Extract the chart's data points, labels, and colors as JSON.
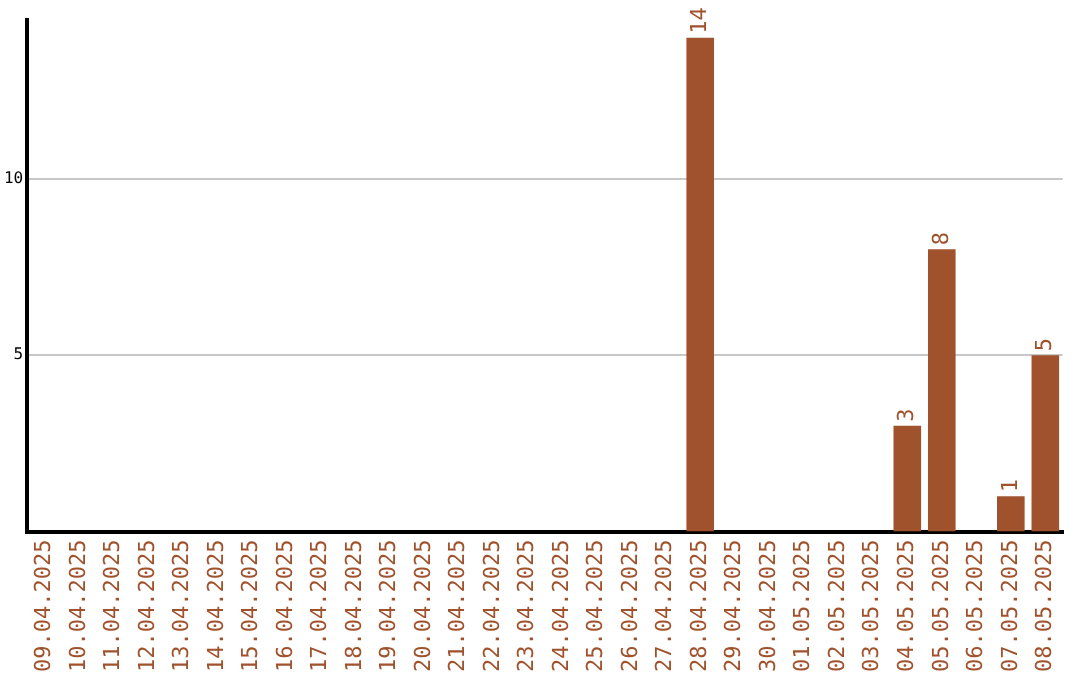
{
  "chart_data": {
    "type": "bar",
    "categories": [
      "09.04.2025",
      "10.04.2025",
      "11.04.2025",
      "12.04.2025",
      "13.04.2025",
      "14.04.2025",
      "15.04.2025",
      "16.04.2025",
      "17.04.2025",
      "18.04.2025",
      "19.04.2025",
      "20.04.2025",
      "21.04.2025",
      "22.04.2025",
      "23.04.2025",
      "24.04.2025",
      "25.04.2025",
      "26.04.2025",
      "27.04.2025",
      "28.04.2025",
      "29.04.2025",
      "30.04.2025",
      "01.05.2025",
      "02.05.2025",
      "03.05.2025",
      "04.05.2025",
      "05.05.2025",
      "06.05.2025",
      "07.05.2025",
      "08.05.2025"
    ],
    "values": [
      0,
      0,
      0,
      0,
      0,
      0,
      0,
      0,
      0,
      0,
      0,
      0,
      0,
      0,
      0,
      0,
      0,
      0,
      0,
      14,
      0,
      0,
      0,
      0,
      0,
      3,
      8,
      0,
      1,
      5
    ],
    "value_labels": [
      null,
      null,
      null,
      null,
      null,
      null,
      null,
      null,
      null,
      null,
      null,
      null,
      null,
      null,
      null,
      null,
      null,
      null,
      null,
      "14",
      null,
      null,
      null,
      null,
      null,
      "3",
      "8",
      null,
      "1",
      "5"
    ],
    "color": "#a0522d",
    "ylim": [
      0,
      14.5
    ],
    "yticks": [
      5,
      10
    ],
    "grid": "y"
  }
}
